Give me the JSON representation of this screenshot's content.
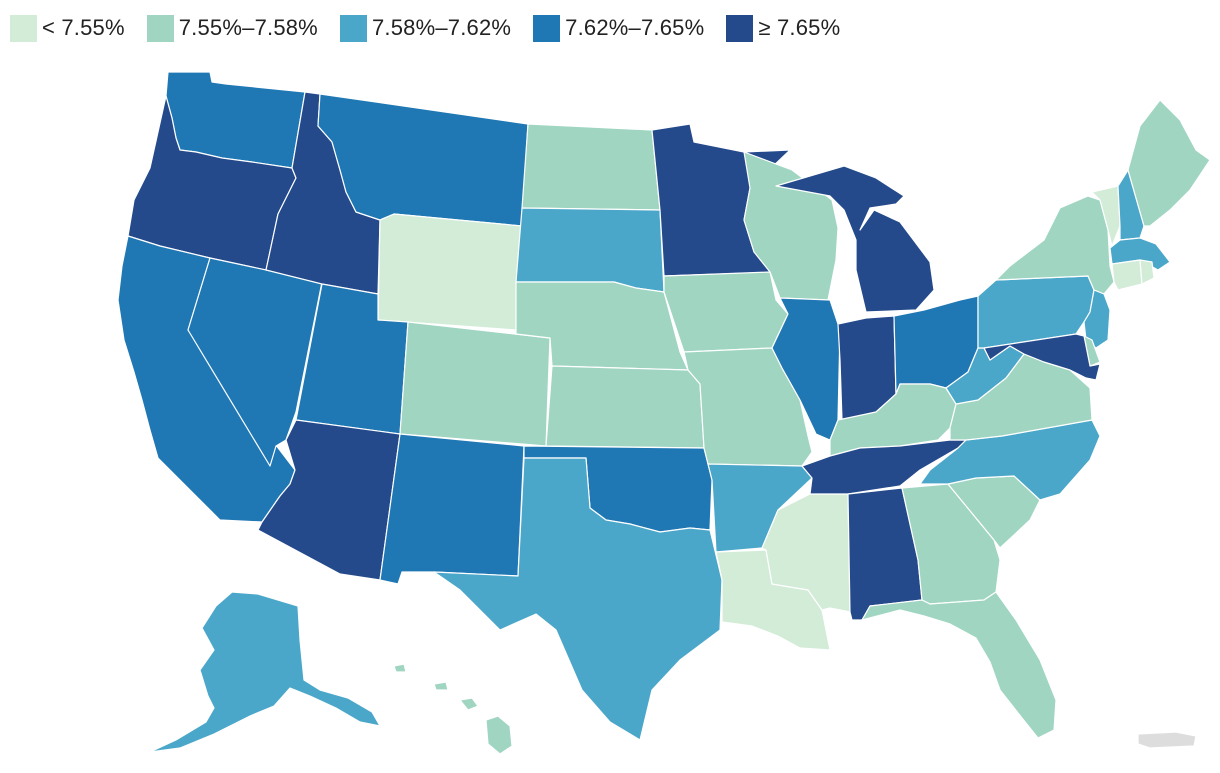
{
  "legend": [
    {
      "label": "< 7.55%",
      "color": "#d2ecd8"
    },
    {
      "label": "7.55%–7.58%",
      "color": "#9fd5c1"
    },
    {
      "label": "7.58%–7.62%",
      "color": "#4ba7c9"
    },
    {
      "label": "7.62%–7.65%",
      "color": "#1f77b4"
    },
    {
      "label": "≥ 7.65%",
      "color": "#244a8c"
    }
  ],
  "no_data_color": "#dddddd",
  "states": {
    "WA": 3,
    "OR": 4,
    "CA": 3,
    "NV": 3,
    "ID": 4,
    "MT": 3,
    "WY": 0,
    "UT": 3,
    "AZ": 4,
    "CO": 1,
    "NM": 3,
    "ND": 1,
    "SD": 2,
    "NE": 1,
    "KS": 1,
    "OK": 3,
    "TX": 2,
    "MN": 4,
    "IA": 1,
    "MO": 1,
    "AR": 2,
    "LA": 0,
    "WI": 1,
    "IL": 3,
    "MS": 0,
    "MI": 4,
    "IN": 4,
    "KY": 1,
    "TN": 4,
    "AL": 4,
    "OH": 3,
    "WV": 2,
    "VA": 1,
    "NC": 2,
    "SC": 1,
    "GA": 1,
    "FL": 1,
    "PA": 2,
    "NY": 1,
    "NJ": 2,
    "DE": 1,
    "MD": 4,
    "CT": 0,
    "RI": 0,
    "MA": 2,
    "VT": 0,
    "NH": 2,
    "ME": 1,
    "AK": 2,
    "HI": 1,
    "PR": -1
  }
}
